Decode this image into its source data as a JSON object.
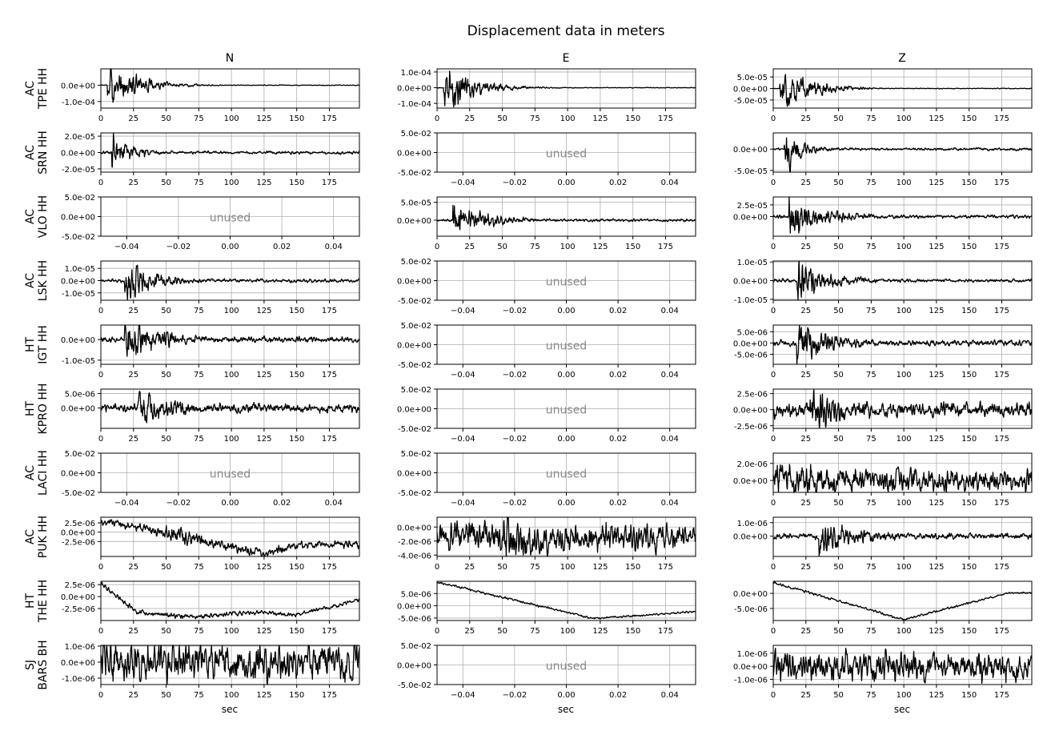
{
  "figure": {
    "title": "Displacement data in meters",
    "columns": [
      "N",
      "E",
      "Z"
    ],
    "xlabel": "sec",
    "unused_label": "unused"
  },
  "chart_data": {
    "type": "line",
    "title": "Displacement data in meters",
    "xlabel": "sec",
    "ylabel_unit": "meters",
    "grid": true,
    "line_color": "#000000",
    "unused_color": "#888888",
    "time_xlim": [
      0,
      198
    ],
    "time_xticks": [
      0,
      25,
      50,
      75,
      100,
      125,
      150,
      175
    ],
    "unused_xlim": [
      -0.05,
      0.05
    ],
    "unused_xticks": [
      -0.04,
      -0.02,
      0.0,
      0.02,
      0.04
    ],
    "unused_xtick_labels": [
      "−0.04",
      "−0.02",
      "0.00",
      "0.02",
      "0.04"
    ],
    "unused_ylim": [
      -0.05,
      0.05
    ],
    "unused_yticks": [
      -0.05,
      0,
      0.05
    ],
    "unused_ytick_labels": [
      "-5.0e-02",
      "0.0e+00",
      "5.0e-02"
    ],
    "stations": [
      {
        "network": "AC",
        "station": "TPE HH",
        "panels": [
          {
            "component": "N",
            "used": true,
            "ylim": [
              -0.00014,
              0.0001
            ],
            "yticks": [
              -0.0001,
              0
            ],
            "ytick_labels": [
              "-1.0e-04",
              "0.0e+00"
            ],
            "peak_amplitude": 0.00012,
            "onset": 5,
            "decay": 22,
            "drift": 0,
            "noise": 0.015
          },
          {
            "component": "E",
            "used": true,
            "ylim": [
              -0.00013,
              0.00012
            ],
            "yticks": [
              -0.0001,
              0,
              0.0001
            ],
            "ytick_labels": [
              "-1.0e-04",
              "0.0e+00",
              "1.0e-04"
            ],
            "peak_amplitude": 0.00012,
            "onset": 5,
            "decay": 22,
            "drift": 0,
            "noise": 0.015
          },
          {
            "component": "Z",
            "used": true,
            "ylim": [
              -8.5e-05,
              8.5e-05
            ],
            "yticks": [
              -5e-05,
              0,
              5e-05
            ],
            "ytick_labels": [
              "-5.0e-05",
              "0.0e+00",
              "5.0e-05"
            ],
            "peak_amplitude": 8e-05,
            "onset": 5,
            "decay": 22,
            "drift": 0,
            "noise": 0.015
          }
        ]
      },
      {
        "network": "AC",
        "station": "SRN HH",
        "panels": [
          {
            "component": "N",
            "used": true,
            "ylim": [
              -2.4e-05,
              2.4e-05
            ],
            "yticks": [
              -2e-05,
              0,
              2e-05
            ],
            "ytick_labels": [
              "-2.0e-05",
              "0.0e+00",
              "2.0e-05"
            ],
            "peak_amplitude": 2.2e-05,
            "onset": 8,
            "decay": 15,
            "drift": 0,
            "noise": 0.06
          },
          {
            "component": "E",
            "used": false
          },
          {
            "component": "Z",
            "used": true,
            "ylim": [
              -5.4e-05,
              3.8e-05
            ],
            "yticks": [
              -5e-05,
              0
            ],
            "ytick_labels": [
              "-5.0e-05",
              "0.0e+00"
            ],
            "peak_amplitude": 4.5e-05,
            "onset": 8,
            "decay": 14,
            "drift": 0,
            "noise": 0.05
          }
        ]
      },
      {
        "network": "AC",
        "station": "VLO HH",
        "panels": [
          {
            "component": "N",
            "used": false
          },
          {
            "component": "E",
            "used": true,
            "ylim": [
              -4.5e-05,
              6.5e-05
            ],
            "yticks": [
              0,
              5e-05
            ],
            "ytick_labels": [
              "0.0e+00",
              "5.0e-05"
            ],
            "peak_amplitude": 4.2e-05,
            "onset": 12,
            "decay": 25,
            "drift": 0,
            "noise": 0.07
          },
          {
            "component": "Z",
            "used": true,
            "ylim": [
              -4.2e-05,
              4.2e-05
            ],
            "yticks": [
              0,
              2.5e-05
            ],
            "ytick_labels": [
              "0.0e+00",
              "2.5e-05"
            ],
            "peak_amplitude": 3.6e-05,
            "onset": 12,
            "decay": 28,
            "drift": 0,
            "noise": 0.08
          }
        ]
      },
      {
        "network": "AC",
        "station": "LSK HH",
        "panels": [
          {
            "component": "N",
            "used": true,
            "ylim": [
              -1.6e-05,
              1.6e-05
            ],
            "yticks": [
              -1e-05,
              0,
              1e-05
            ],
            "ytick_labels": [
              "-1.0e-05",
              "0.0e+00",
              "1.0e-05"
            ],
            "peak_amplitude": 1.5e-05,
            "onset": 18,
            "decay": 22,
            "drift": 0,
            "noise": 0.07
          },
          {
            "component": "E",
            "used": false
          },
          {
            "component": "Z",
            "used": true,
            "ylim": [
              -1.05e-05,
              1.05e-05
            ],
            "yticks": [
              -1e-05,
              0,
              1e-05
            ],
            "ytick_labels": [
              "-1.0e-05",
              "0.0e+00",
              "1.0e-05"
            ],
            "peak_amplitude": 1e-05,
            "onset": 18,
            "decay": 25,
            "drift": 0,
            "noise": 0.07
          }
        ]
      },
      {
        "network": "HT",
        "station": "IGT HH",
        "panels": [
          {
            "component": "N",
            "used": true,
            "ylim": [
              -1.2e-05,
              7e-06
            ],
            "yticks": [
              -1e-05,
              0
            ],
            "ytick_labels": [
              "-1.0e-05",
              "0.0e+00"
            ],
            "peak_amplitude": 1e-05,
            "onset": 18,
            "decay": 28,
            "drift": 0,
            "noise": 0.1
          },
          {
            "component": "E",
            "used": false
          },
          {
            "component": "Z",
            "used": true,
            "ylim": [
              -9.5e-06,
              8e-06
            ],
            "yticks": [
              -5e-06,
              0,
              5e-06
            ],
            "ytick_labels": [
              "-5.0e-06",
              "0.0e+00",
              "5.0e-06"
            ],
            "peak_amplitude": 8e-06,
            "onset": 18,
            "decay": 30,
            "drift": 0,
            "noise": 0.12
          }
        ]
      },
      {
        "network": "HT",
        "station": "KPRO HH",
        "panels": [
          {
            "component": "N",
            "used": true,
            "ylim": [
              -7e-06,
              6.5e-06
            ],
            "yticks": [
              0,
              5e-06
            ],
            "ytick_labels": [
              "0.0e+00",
              "5.0e-06"
            ],
            "peak_amplitude": 5.5e-06,
            "onset": 28,
            "decay": 30,
            "drift": 0,
            "noise": 0.2
          },
          {
            "component": "E",
            "used": false
          },
          {
            "component": "Z",
            "used": true,
            "ylim": [
              -2.9e-06,
              3.2e-06
            ],
            "yticks": [
              -2.5e-06,
              0,
              2.5e-06
            ],
            "ytick_labels": [
              "-2.5e-06",
              "0.0e+00",
              "2.5e-06"
            ],
            "peak_amplitude": 2.8e-06,
            "onset": 28,
            "decay": 35,
            "drift": 0,
            "noise": 0.3
          }
        ]
      },
      {
        "network": "AC",
        "station": "LACI HH",
        "panels": [
          {
            "component": "N",
            "used": false
          },
          {
            "component": "E",
            "used": false
          },
          {
            "component": "Z",
            "used": true,
            "ylim": [
              -1.4e-06,
              3.2e-06
            ],
            "yticks": [
              0,
              2e-06
            ],
            "ytick_labels": [
              "0.0e+00",
              "2.0e-06"
            ],
            "peak_amplitude": 1.4e-06,
            "onset": 0,
            "decay": 400,
            "drift": 0,
            "noise": 0.55,
            "offset": 1e-06
          }
        ]
      },
      {
        "network": "AC",
        "station": "PUK HH",
        "panels": [
          {
            "component": "N",
            "used": true,
            "ylim": [
              -6.5e-06,
              4e-06
            ],
            "yticks": [
              -2.5e-06,
              0,
              2.5e-06
            ],
            "ytick_labels": [
              "-2.5e-06",
              "0.0e+00",
              "2.5e-06"
            ],
            "peak_amplitude": 1.5e-06,
            "onset": 50,
            "decay": 40,
            "drift": 1,
            "noise": 0.25
          },
          {
            "component": "E",
            "used": true,
            "ylim": [
              -4.2e-06,
              1.4e-06
            ],
            "yticks": [
              -4e-06,
              -2e-06,
              0
            ],
            "ytick_labels": [
              "-4.0e-06",
              "-2.0e-06",
              "0.0e+00"
            ],
            "peak_amplitude": 2.3e-06,
            "onset": 50,
            "decay": 30,
            "drift": 2,
            "noise": 0.3
          },
          {
            "component": "Z",
            "used": true,
            "ylim": [
              -1.5e-06,
              1.4e-06
            ],
            "yticks": [
              0,
              1e-06
            ],
            "ytick_labels": [
              "0.0e+00",
              "1.0e-06"
            ],
            "peak_amplitude": 1.1e-06,
            "onset": 35,
            "decay": 35,
            "drift": 0,
            "noise": 0.15
          }
        ]
      },
      {
        "network": "HT",
        "station": "THE HH",
        "panels": [
          {
            "component": "N",
            "used": true,
            "ylim": [
              -5e-06,
              3.2e-06
            ],
            "yticks": [
              -2.5e-06,
              0,
              2.5e-06
            ],
            "ytick_labels": [
              "-2.5e-06",
              "0.0e+00",
              "2.5e-06"
            ],
            "peak_amplitude": 3e-07,
            "onset": 0,
            "decay": 400,
            "drift": 3,
            "noise": 0.4
          },
          {
            "component": "E",
            "used": true,
            "ylim": [
              -6e-06,
              1e-05
            ],
            "yticks": [
              -5e-06,
              0,
              5e-06
            ],
            "ytick_labels": [
              "-5.0e-06",
              "0.0e+00",
              "5.0e-06"
            ],
            "peak_amplitude": 3e-07,
            "onset": 0,
            "decay": 400,
            "drift": 4,
            "noise": 0.4
          },
          {
            "component": "Z",
            "used": true,
            "ylim": [
              -9e-06,
              4e-06
            ],
            "yticks": [
              -5e-06,
              0
            ],
            "ytick_labels": [
              "-5.0e-06",
              "0.0e+00"
            ],
            "peak_amplitude": 2.5e-07,
            "onset": 0,
            "decay": 400,
            "drift": 5,
            "noise": 0.3
          }
        ]
      },
      {
        "network": "SJ",
        "station": "BARS BH",
        "panels": [
          {
            "component": "N",
            "used": true,
            "ylim": [
              -1.4e-06,
              1.05e-06
            ],
            "yticks": [
              -1e-06,
              0,
              1e-06
            ],
            "ytick_labels": [
              "-1.0e-06",
              "0.0e+00",
              "1.0e-06"
            ],
            "peak_amplitude": 9e-07,
            "onset": 0,
            "decay": 400,
            "drift": 0,
            "noise": 0.9
          },
          {
            "component": "E",
            "used": false
          },
          {
            "component": "Z",
            "used": true,
            "ylim": [
              -1.4e-06,
              1.6e-06
            ],
            "yticks": [
              -1e-06,
              0,
              1e-06
            ],
            "ytick_labels": [
              "-1.0e-06",
              "0.0e+00",
              "1.0e-06"
            ],
            "peak_amplitude": 9e-07,
            "onset": 0,
            "decay": 400,
            "drift": 0,
            "noise": 0.9
          }
        ]
      }
    ]
  }
}
